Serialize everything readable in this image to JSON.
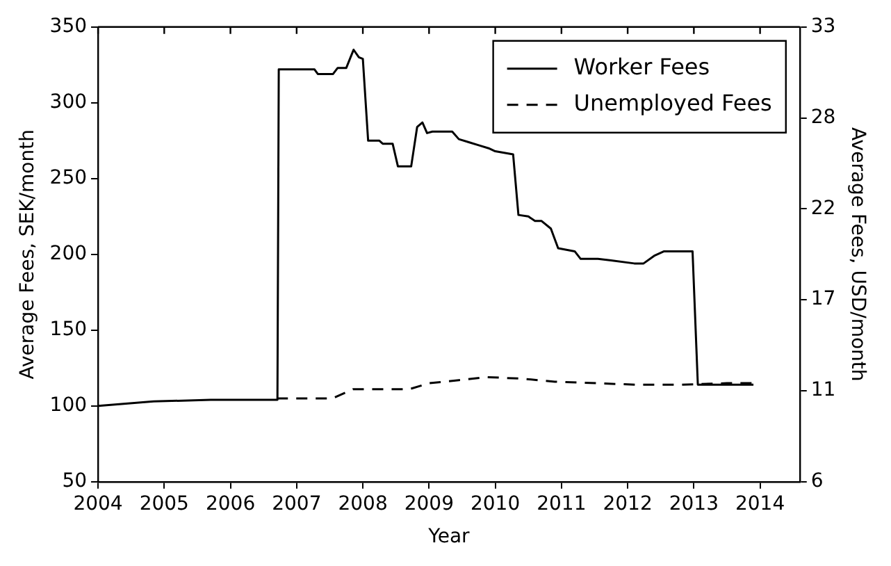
{
  "chart_data": {
    "type": "step",
    "xlabel": "Year",
    "ylabel": "Average Fees, SEK/month",
    "y2label": "Average Fees, USD/month",
    "xlim": [
      2004,
      2014.6
    ],
    "xticks": [
      2004,
      2005,
      2006,
      2007,
      2008,
      2009,
      2010,
      2011,
      2012,
      2013,
      2014
    ],
    "ylim": [
      50,
      350
    ],
    "yticks": [
      50,
      100,
      150,
      200,
      250,
      300,
      350
    ],
    "y2lim": [
      5.5,
      33
    ],
    "y2ticks": [
      {
        "value": 5.5,
        "label": "6"
      },
      {
        "value": 11,
        "label": "11"
      },
      {
        "value": 16.5,
        "label": "17"
      },
      {
        "value": 22,
        "label": "22"
      },
      {
        "value": 27.5,
        "label": "28"
      },
      {
        "value": 33,
        "label": "33"
      }
    ],
    "legend": "top right",
    "grid": false,
    "marker": "none",
    "series": [
      {
        "name": "Worker Fees",
        "color": "#000000",
        "line_style": "solid",
        "x": [
          2004,
          2004.84,
          2005.7,
          2006.71,
          2006.73,
          2007.27,
          2007.32,
          2007.55,
          2007.62,
          2007.75,
          2007.86,
          2007.94,
          2008.0,
          2008.08,
          2008.25,
          2008.3,
          2008.45,
          2008.53,
          2008.73,
          2008.82,
          2008.9,
          2008.97,
          2009.05,
          2009.35,
          2009.45,
          2009.6,
          2009.75,
          2009.9,
          2010.0,
          2010.27,
          2010.35,
          2010.5,
          2010.6,
          2010.7,
          2010.84,
          2010.95,
          2011.2,
          2011.29,
          2011.55,
          2011.75,
          2012.1,
          2012.24,
          2012.4,
          2012.55,
          2012.98,
          2013.06,
          2013.9
        ],
        "values": [
          100,
          103,
          104,
          104,
          322,
          322,
          319,
          319,
          323,
          323,
          335,
          330,
          329,
          275,
          275,
          273,
          273,
          258,
          258,
          284,
          287,
          280,
          281,
          281,
          276,
          274,
          272,
          270,
          268,
          266,
          226,
          225,
          222,
          222,
          217,
          204,
          202,
          197,
          197,
          196,
          194,
          194,
          199,
          202,
          202,
          114,
          114
        ]
      },
      {
        "name": "Unemployed Fees",
        "color": "#000000",
        "line_style": "dashed",
        "x": [
          2006.7,
          2007.54,
          2007.85,
          2008.7,
          2009.0,
          2009.45,
          2009.88,
          2010.4,
          2010.9,
          2012.14,
          2012.8,
          2013.5,
          2013.9
        ],
        "values": [
          105,
          105,
          111,
          111,
          115,
          117,
          119,
          118,
          116,
          114,
          114,
          115,
          115
        ]
      }
    ]
  }
}
